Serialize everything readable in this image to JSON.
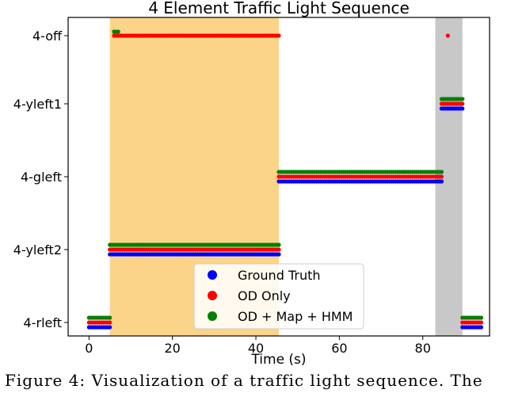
{
  "chart_data": {
    "type": "scatter",
    "title": "4 Element Traffic Light Sequence",
    "xlabel": "Time (s)",
    "ylabel": "",
    "xlim": [
      -5,
      96
    ],
    "x_ticks": [
      0,
      20,
      40,
      60,
      80
    ],
    "y_categories": [
      "4-rleft",
      "4-yleft2",
      "4-gleft",
      "4-yleft1",
      "4-off"
    ],
    "grid": false,
    "legend_position": "lower-center",
    "shaded_regions": [
      {
        "x": [
          5,
          45.5
        ],
        "color": "#fbd48a"
      },
      {
        "x": [
          83,
          89.5
        ],
        "color": "#c8c8c8"
      }
    ],
    "series": [
      {
        "name": "Ground Truth",
        "color": "#0000ff",
        "segments": [
          {
            "state": "4-rleft",
            "x": [
              0,
              5
            ]
          },
          {
            "state": "4-yleft2",
            "x": [
              5,
              45.5
            ]
          },
          {
            "state": "4-gleft",
            "x": [
              45.5,
              84.5
            ]
          },
          {
            "state": "4-yleft1",
            "x": [
              84.5,
              89.5
            ]
          },
          {
            "state": "4-rleft",
            "x": [
              89.5,
              94
            ]
          }
        ],
        "points": []
      },
      {
        "name": "OD Only",
        "color": "#ff0000",
        "segments": [
          {
            "state": "4-rleft",
            "x": [
              0,
              5
            ]
          },
          {
            "state": "4-off",
            "x": [
              6,
              45.5
            ]
          },
          {
            "state": "4-yleft2",
            "x": [
              5,
              45.5
            ]
          },
          {
            "state": "4-gleft",
            "x": [
              45.5,
              84.5
            ]
          },
          {
            "state": "4-yleft1",
            "x": [
              84.5,
              89.5
            ]
          },
          {
            "state": "4-rleft",
            "x": [
              89.5,
              94
            ]
          }
        ],
        "points": [
          {
            "state": "4-off",
            "x": 86
          }
        ]
      },
      {
        "name": "OD + Map + HMM",
        "color": "#008000",
        "segments": [
          {
            "state": "4-rleft",
            "x": [
              0,
              5
            ]
          },
          {
            "state": "4-off",
            "x": [
              6,
              7
            ]
          },
          {
            "state": "4-yleft2",
            "x": [
              5,
              45.5
            ]
          },
          {
            "state": "4-gleft",
            "x": [
              45.5,
              84.5
            ]
          },
          {
            "state": "4-yleft1",
            "x": [
              84.5,
              89.5
            ]
          },
          {
            "state": "4-rleft",
            "x": [
              89.5,
              94
            ]
          }
        ],
        "points": []
      }
    ]
  },
  "caption": "Figure 4: Visualization of a traffic light sequence. The"
}
